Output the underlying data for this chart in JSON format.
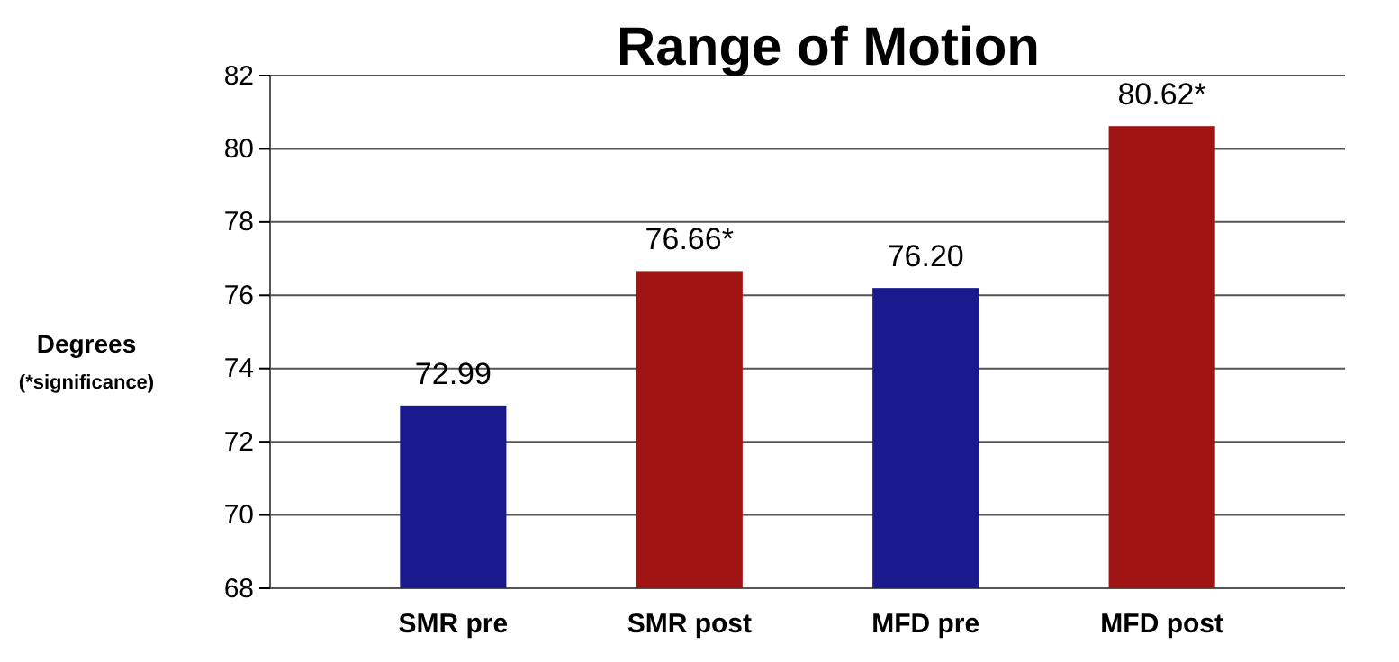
{
  "chart_data": {
    "type": "bar",
    "title": "Range of Motion",
    "ylabel": "Degrees",
    "annotations": [
      "(*significance)"
    ],
    "categories": [
      "SMR pre",
      "SMR post",
      "MFD pre",
      "MFD post"
    ],
    "values": [
      72.99,
      76.66,
      76.2,
      80.62
    ],
    "colors": [
      "#1a1a8c",
      "#a01414",
      "#1a1a8c",
      "#a01414"
    ],
    "value_labels": [
      "72.99",
      "76.66*",
      "76.20",
      "80.62*"
    ],
    "ylim": [
      68,
      82
    ],
    "yticks": [
      68,
      70,
      72,
      74,
      76,
      78,
      80,
      82
    ],
    "grid": "y"
  }
}
